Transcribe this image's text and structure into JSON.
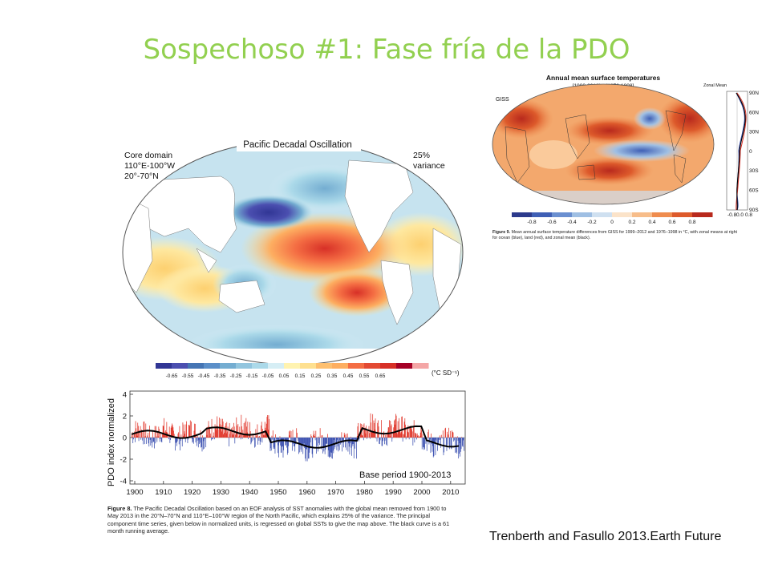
{
  "slide": {
    "title": "Sospechoso #1: Fase fría de la PDO",
    "citation": "Trenberth and Fasullo 2013.Earth Future"
  },
  "pdo_map": {
    "title": "Pacific Decadal Oscillation",
    "core_line1": "Core domain",
    "core_line2": "110°E-100°W",
    "core_line3": "20°-70°N",
    "variance_line1": "25%",
    "variance_line2": "variance",
    "colorbar_ticks": [
      "-0.65",
      "-0.55",
      "-0.45",
      "-0.35",
      "-0.25",
      "-0.15",
      "-0.05",
      "0.05",
      "0.15",
      "0.25",
      "0.35",
      "0.45",
      "0.55",
      "0.65"
    ],
    "colorbar_unit": "(°C SD⁻¹)",
    "colorbar_colors": [
      "#313695",
      "#4b4fb0",
      "#4575b4",
      "#5b8fc9",
      "#74add1",
      "#92c5de",
      "#abd9e9",
      "#d6eef5",
      "#fff3b0",
      "#fee090",
      "#fdbf6f",
      "#fdae61",
      "#f46d43",
      "#e34a33",
      "#d73027",
      "#a50026",
      "#f4a6a6"
    ]
  },
  "pdo_timeseries": {
    "ylabel": "PDO index normalized",
    "yticks": [
      "4",
      "2",
      "0",
      "-2",
      "-4"
    ],
    "xticks": [
      "1900",
      "1910",
      "1920",
      "1930",
      "1940",
      "1950",
      "1960",
      "1970",
      "1980",
      "1990",
      "2000",
      "2010"
    ],
    "base_period": "Base period 1900-2013",
    "positive_color": "#e03428",
    "negative_color": "#3a4fb0"
  },
  "figure8_caption": {
    "label": "Figure 8.",
    "line1": "The Pacific Decadal Oscillation based on an EOF analysis of SST anomalies with the global mean removed from 1900 to",
    "line2": "May 2013 in the 20°N–70°N and 110°E–100°W region of the North Pacific, which explains 25% of the variance. The principal",
    "line3": "component time series, given below in normalized units, is regressed on global SSTs to give the map above. The black curve is a 61",
    "line4": "month running average."
  },
  "giss_map": {
    "title": "Annual mean surface temperatures",
    "subtitle": "[1999-2012] – [1976-1998]",
    "label": "GISS",
    "zonal_title": "Zonal Mean",
    "zonal_lat_ticks": [
      "90N",
      "60N",
      "30N",
      "0",
      "30S",
      "60S",
      "90S"
    ],
    "zonal_x_ticks": [
      "-0.8",
      "0.0",
      "0.8"
    ],
    "colorbar_ticks": [
      "-0.8",
      "-0.6",
      "-0.4",
      "-0.2",
      "0",
      "0.2",
      "0.4",
      "0.6",
      "0.8"
    ],
    "colorbar_colors": [
      "#2c3a8c",
      "#3f5fb5",
      "#6a8fd0",
      "#9fbfe3",
      "#cfe0f0",
      "#fbe3c9",
      "#f7bd8a",
      "#ef8c4e",
      "#dd5a2b",
      "#b8291d"
    ]
  },
  "figure9_caption": {
    "label": "Figure 9.",
    "line1": "Mean annual surface temperature differences from GISS for 1999–2012 and 1976–1998 in °C, with zonal means at right",
    "line2": "for ocean (blue), land (red), and zonal mean (black)."
  }
}
